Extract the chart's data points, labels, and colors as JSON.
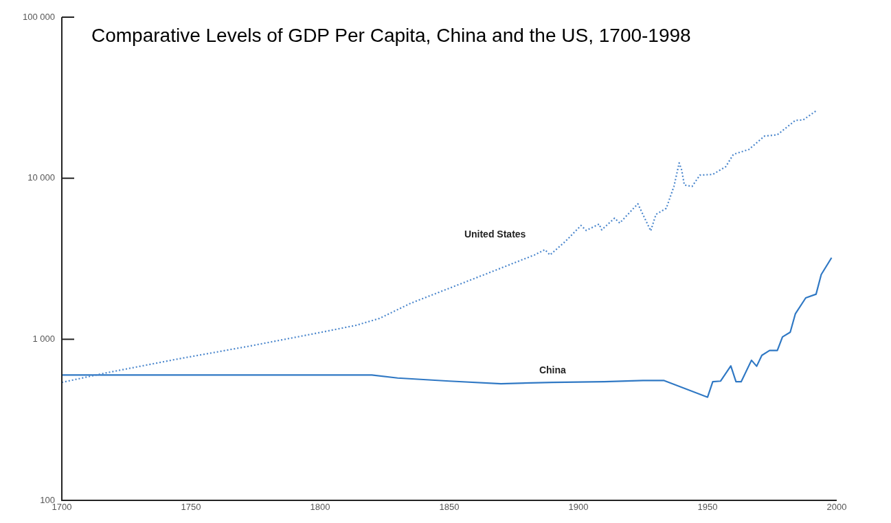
{
  "chart_data": {
    "type": "line",
    "title": "Comparative Levels of GDP Per Capita, China and the US, 1700-1998",
    "series": [
      {
        "name": "United States",
        "color": "#4a86cc",
        "line_style": "dotted",
        "x": [
          1700,
          1717,
          1745,
          1772,
          1798,
          1814,
          1823,
          1835,
          1863,
          1883,
          1887,
          1889,
          1895,
          1901,
          1903,
          1908,
          1909,
          1914,
          1916,
          1923,
          1928,
          1930,
          1934,
          1937,
          1939,
          1940,
          1941,
          1944,
          1947,
          1952,
          1957,
          1960,
          1966,
          1972,
          1977,
          1984,
          1987,
          1992
        ],
        "values": [
          540,
          618,
          755,
          903,
          1086,
          1222,
          1348,
          1672,
          2500,
          3340,
          3600,
          3340,
          4060,
          5090,
          4740,
          5190,
          4780,
          5650,
          5270,
          6940,
          4710,
          5960,
          6500,
          8920,
          12440,
          11200,
          9080,
          8890,
          10450,
          10560,
          11780,
          14070,
          15090,
          18260,
          18600,
          22870,
          23000,
          26200
        ]
      },
      {
        "name": "China",
        "color": "#2f78c4",
        "line_style": "solid",
        "x": [
          1700,
          1820,
          1830,
          1850,
          1870,
          1890,
          1910,
          1925,
          1933,
          1950,
          1952,
          1955,
          1959,
          1961,
          1963,
          1967,
          1969,
          1971,
          1974,
          1977,
          1979,
          1982,
          1984,
          1988,
          1992,
          1994,
          1998
        ],
        "values": [
          600,
          600,
          575,
          550,
          530,
          540,
          545,
          555,
          555,
          437,
          545,
          550,
          684,
          545,
          545,
          741,
          680,
          795,
          852,
          852,
          1034,
          1107,
          1442,
          1808,
          1906,
          2523,
          3208
        ]
      }
    ],
    "xlim": [
      1700,
      2000
    ],
    "xticks": [
      1700,
      1750,
      1800,
      1850,
      1900,
      1950,
      2000
    ],
    "ylim": [
      100,
      100000
    ],
    "yticks": [
      {
        "value": 100,
        "label": "100"
      },
      {
        "value": 1000,
        "label": "1 000"
      },
      {
        "value": 10000,
        "label": "10 000"
      },
      {
        "value": 100000,
        "label": "100 000"
      }
    ],
    "log": "y",
    "grid": false,
    "legend": false,
    "marker": "none"
  }
}
